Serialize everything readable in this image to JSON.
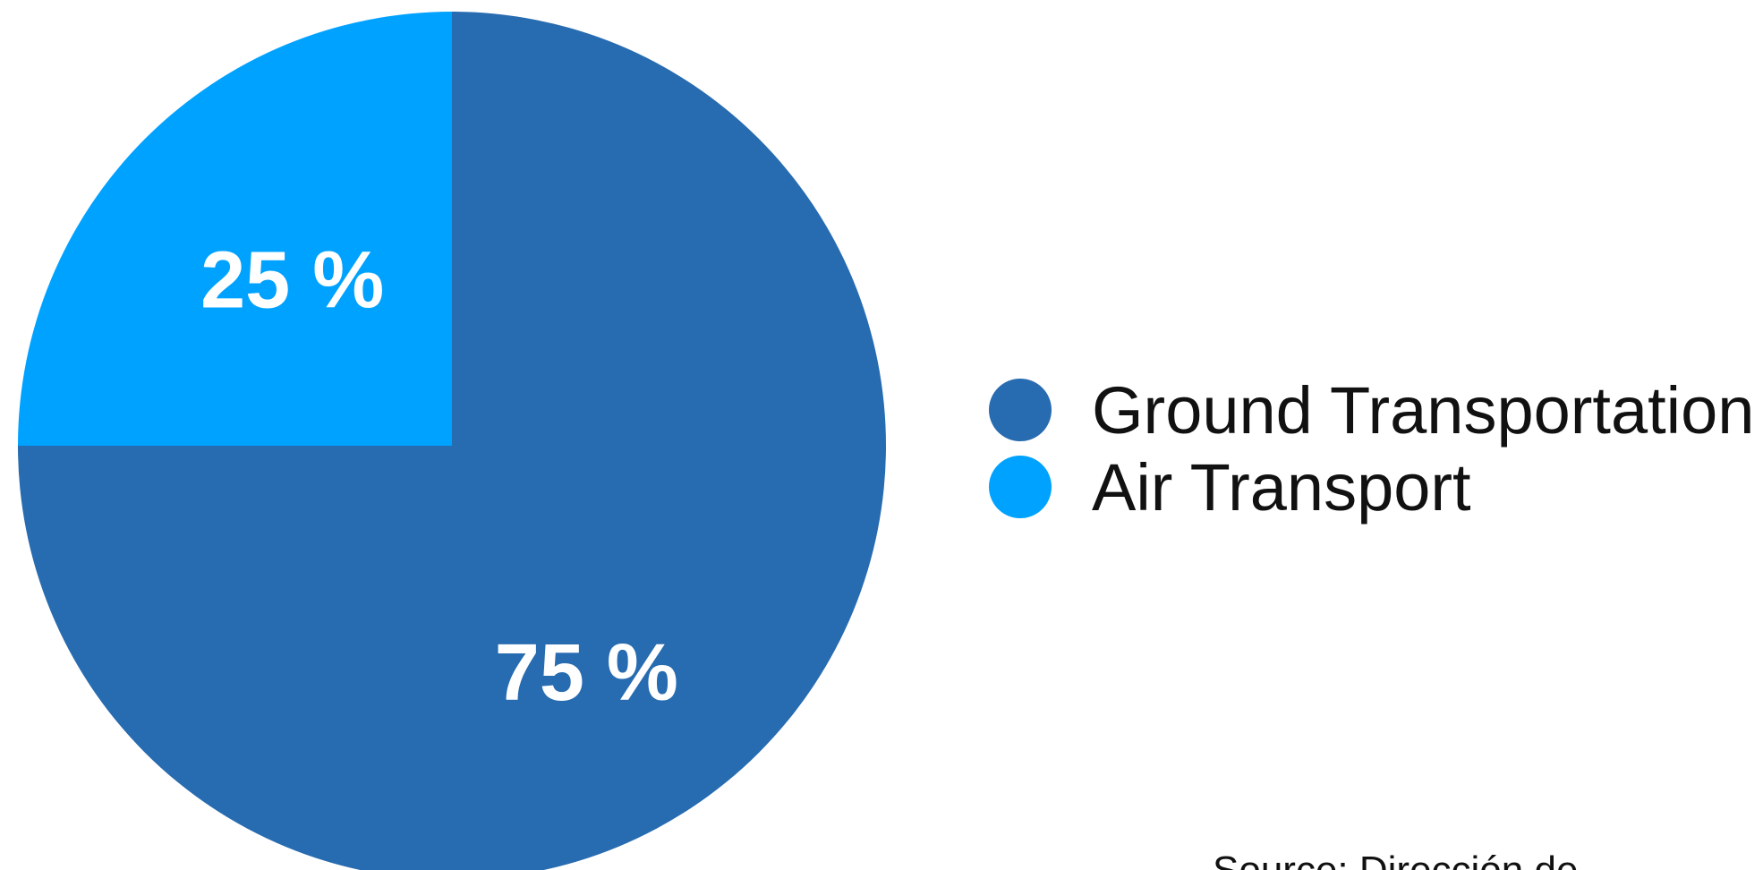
{
  "chart_data": {
    "type": "pie",
    "slices": [
      {
        "name": "Ground Transportation",
        "value": 75,
        "label": "75 %",
        "color": "#276BB0"
      },
      {
        "name": "Air Transport",
        "value": 25,
        "label": "25 %",
        "color": "#00A2FF"
      }
    ],
    "legend_position": "right"
  },
  "legend": {
    "items": [
      {
        "label": "Ground Transportation",
        "color": "#276BB0"
      },
      {
        "label": "Air Transport",
        "color": "#00A2FF"
      }
    ]
  },
  "source": {
    "text": "Source: Dirección de"
  }
}
